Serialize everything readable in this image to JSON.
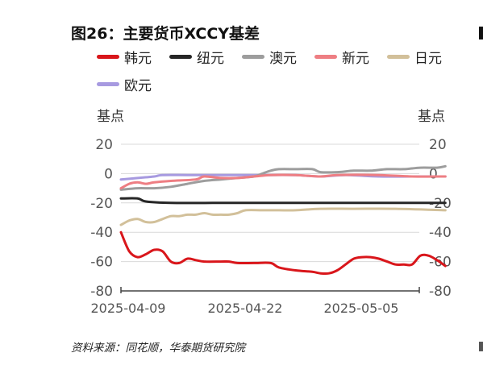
{
  "title": "图26：主要货币XCCY基差",
  "source": "资料来源：同花顺，华泰期货研究院",
  "chart_data": {
    "type": "line",
    "title": "图26：主要货币XCCY基差",
    "ylabel_left": "基点",
    "ylabel_right": "基点",
    "ylim": [
      -80,
      20
    ],
    "yticks": [
      20,
      0,
      -20,
      -40,
      -60,
      -80
    ],
    "x_start": "2025-04-09",
    "x_end": "2025-05-12",
    "xticks": [
      "2025-04-09",
      "2025-04-22",
      "2025-05-05"
    ],
    "grid": true,
    "legend_position": "top",
    "series": [
      {
        "name": "韩元",
        "color": "#d9161b",
        "points": [
          [
            "2025-04-09",
            -40
          ],
          [
            "2025-04-10",
            -53
          ],
          [
            "2025-04-11",
            -57
          ],
          [
            "2025-04-12",
            -55
          ],
          [
            "2025-04-13",
            -52
          ],
          [
            "2025-04-14",
            -53
          ],
          [
            "2025-04-15",
            -60
          ],
          [
            "2025-04-16",
            -61
          ],
          [
            "2025-04-17",
            -58
          ],
          [
            "2025-04-18",
            -59
          ],
          [
            "2025-04-19",
            -60
          ],
          [
            "2025-04-21",
            -60
          ],
          [
            "2025-04-22",
            -60
          ],
          [
            "2025-04-23",
            -61
          ],
          [
            "2025-04-25",
            -61
          ],
          [
            "2025-04-27",
            -61
          ],
          [
            "2025-04-28",
            -64
          ],
          [
            "2025-04-30",
            -66
          ],
          [
            "2025-05-02",
            -67
          ],
          [
            "2025-05-03",
            -68
          ],
          [
            "2025-05-04",
            -68
          ],
          [
            "2025-05-05",
            -66
          ],
          [
            "2025-05-06",
            -62
          ],
          [
            "2025-05-07",
            -58
          ],
          [
            "2025-05-08",
            -57
          ],
          [
            "2025-05-09",
            -57
          ],
          [
            "2025-05-10",
            -58
          ],
          [
            "2025-05-11",
            -60
          ],
          [
            "2025-05-12",
            -62
          ],
          [
            "2025-05-13",
            -62
          ],
          [
            "2025-05-14",
            -62
          ],
          [
            "2025-05-15",
            -56
          ],
          [
            "2025-05-16",
            -56
          ],
          [
            "2025-05-17",
            -59
          ],
          [
            "2025-05-18",
            -63
          ]
        ]
      },
      {
        "name": "纽元",
        "color": "#262626",
        "points": [
          [
            "2025-04-09",
            -17
          ],
          [
            "2025-04-11",
            -17
          ],
          [
            "2025-04-12",
            -19
          ],
          [
            "2025-04-15",
            -20
          ],
          [
            "2025-04-20",
            -20
          ],
          [
            "2025-04-22",
            -20
          ],
          [
            "2025-04-28",
            -20
          ],
          [
            "2025-05-05",
            -20
          ],
          [
            "2025-05-12",
            -20
          ],
          [
            "2025-05-18",
            -20
          ]
        ]
      },
      {
        "name": "澳元",
        "color": "#9d9d9d",
        "points": [
          [
            "2025-04-09",
            -11
          ],
          [
            "2025-04-11",
            -10
          ],
          [
            "2025-04-13",
            -10
          ],
          [
            "2025-04-15",
            -9
          ],
          [
            "2025-04-17",
            -7
          ],
          [
            "2025-04-19",
            -5
          ],
          [
            "2025-04-21",
            -4
          ],
          [
            "2025-04-23",
            -3
          ],
          [
            "2025-04-25",
            -2
          ],
          [
            "2025-04-26",
            0
          ],
          [
            "2025-04-27",
            2
          ],
          [
            "2025-04-28",
            3
          ],
          [
            "2025-04-30",
            3
          ],
          [
            "2025-05-02",
            3
          ],
          [
            "2025-05-03",
            1
          ],
          [
            "2025-05-05",
            1
          ],
          [
            "2025-05-07",
            2
          ],
          [
            "2025-05-09",
            2
          ],
          [
            "2025-05-11",
            3
          ],
          [
            "2025-05-13",
            3
          ],
          [
            "2025-05-15",
            4
          ],
          [
            "2025-05-17",
            4
          ],
          [
            "2025-05-18",
            5
          ]
        ]
      },
      {
        "name": "新元",
        "color": "#ee7e83",
        "points": [
          [
            "2025-04-09",
            -10
          ],
          [
            "2025-04-10",
            -7
          ],
          [
            "2025-04-11",
            -6
          ],
          [
            "2025-04-12",
            -7
          ],
          [
            "2025-04-13",
            -6
          ],
          [
            "2025-04-15",
            -5
          ],
          [
            "2025-04-18",
            -4
          ],
          [
            "2025-04-19",
            -2
          ],
          [
            "2025-04-21",
            -3
          ],
          [
            "2025-04-23",
            -3
          ],
          [
            "2025-04-25",
            -2
          ],
          [
            "2025-04-27",
            -1
          ],
          [
            "2025-04-30",
            -1
          ],
          [
            "2025-05-03",
            -2
          ],
          [
            "2025-05-05",
            -1
          ],
          [
            "2025-05-10",
            -1
          ],
          [
            "2025-05-14",
            -2
          ],
          [
            "2025-05-18",
            -2
          ]
        ]
      },
      {
        "name": "日元",
        "color": "#d2c09a",
        "points": [
          [
            "2025-04-09",
            -35
          ],
          [
            "2025-04-10",
            -32
          ],
          [
            "2025-04-11",
            -31
          ],
          [
            "2025-04-12",
            -33
          ],
          [
            "2025-04-13",
            -33
          ],
          [
            "2025-04-14",
            -31
          ],
          [
            "2025-04-15",
            -29
          ],
          [
            "2025-04-16",
            -29
          ],
          [
            "2025-04-17",
            -28
          ],
          [
            "2025-04-18",
            -28
          ],
          [
            "2025-04-19",
            -27
          ],
          [
            "2025-04-20",
            -28
          ],
          [
            "2025-04-21",
            -28
          ],
          [
            "2025-04-22",
            -28
          ],
          [
            "2025-04-23",
            -27
          ],
          [
            "2025-04-24",
            -25
          ],
          [
            "2025-04-26",
            -25
          ],
          [
            "2025-04-28",
            -25
          ],
          [
            "2025-04-30",
            -25
          ],
          [
            "2025-05-03",
            -24
          ],
          [
            "2025-05-07",
            -24
          ],
          [
            "2025-05-12",
            -24
          ],
          [
            "2025-05-18",
            -25
          ]
        ]
      },
      {
        "name": "欧元",
        "color": "#a79ae0",
        "points": [
          [
            "2025-04-09",
            -4
          ],
          [
            "2025-04-11",
            -3
          ],
          [
            "2025-04-13",
            -2
          ],
          [
            "2025-04-14",
            -1
          ],
          [
            "2025-04-17",
            -1
          ],
          [
            "2025-04-20",
            -1
          ],
          [
            "2025-04-24",
            -1
          ],
          [
            "2025-04-27",
            -1
          ],
          [
            "2025-04-30",
            -1
          ],
          [
            "2025-05-03",
            -2
          ],
          [
            "2025-05-06",
            -1
          ],
          [
            "2025-05-10",
            -2
          ],
          [
            "2025-05-14",
            -2
          ],
          [
            "2025-05-18",
            -2
          ]
        ]
      }
    ]
  }
}
